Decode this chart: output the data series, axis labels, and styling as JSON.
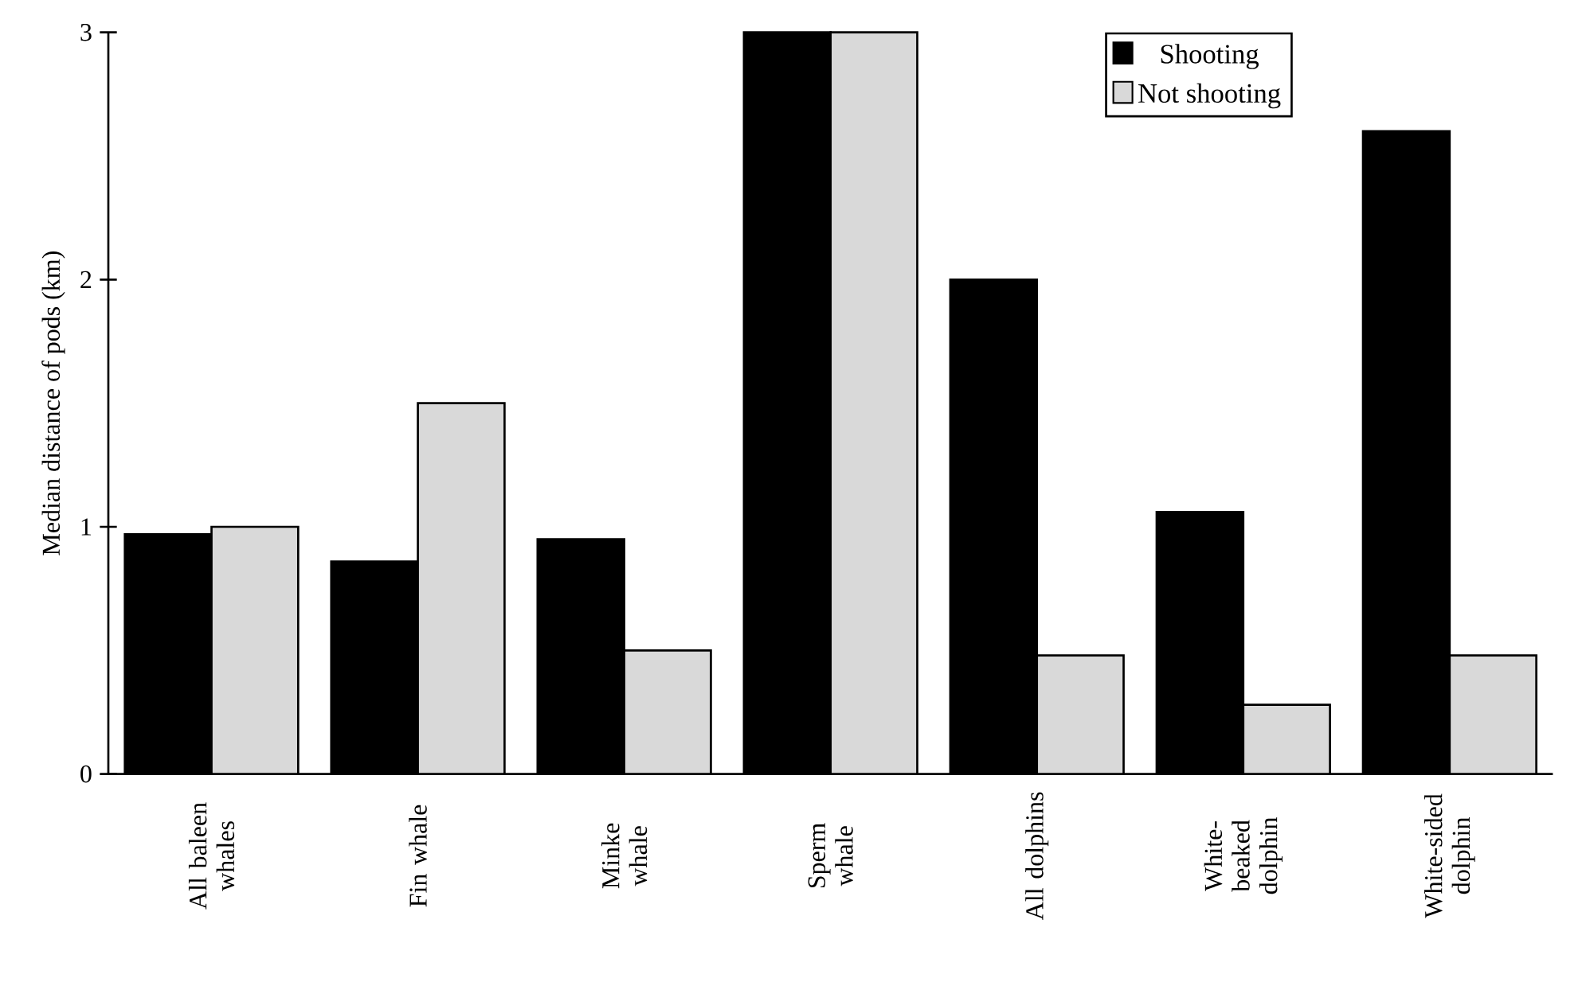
{
  "chart_data": {
    "type": "bar",
    "ylabel": "Median distance of pods (km)",
    "categories": [
      "All baleen whales",
      "Fin whale",
      "Minke whale",
      "Sperm whale",
      "All dolphins",
      "White-beaked dolphin",
      "White-sided dolphin"
    ],
    "series": [
      {
        "name": "Shooting",
        "color": "#000000",
        "values": [
          0.97,
          0.86,
          0.95,
          3.0,
          2.0,
          1.06,
          2.6
        ]
      },
      {
        "name": "Not shooting",
        "color": "#d9d9d9",
        "values": [
          1.0,
          1.5,
          0.5,
          3.0,
          0.48,
          0.28,
          0.48
        ]
      }
    ],
    "ylim": [
      0,
      3
    ],
    "yticks": [
      0,
      1,
      2,
      3
    ],
    "legend": "top right"
  }
}
